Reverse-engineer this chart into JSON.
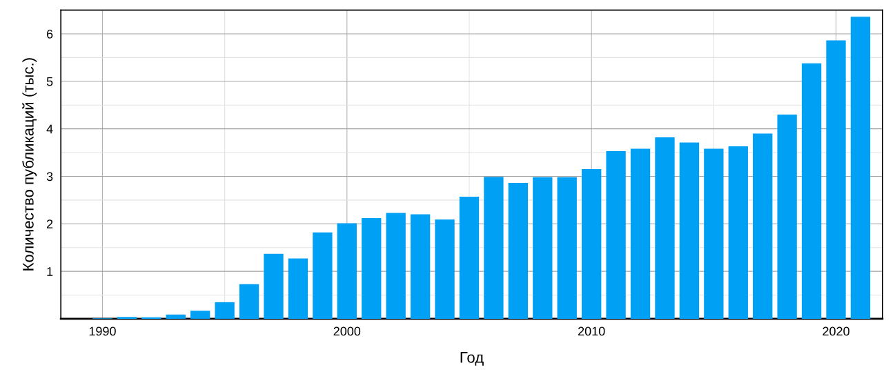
{
  "chart_data": {
    "type": "bar",
    "xlabel": "Год",
    "ylabel": "Количество публикаций (тыс.)",
    "x": [
      1990,
      1991,
      1992,
      1993,
      1994,
      1995,
      1996,
      1997,
      1998,
      1999,
      2000,
      2001,
      2002,
      2003,
      2004,
      2005,
      2006,
      2007,
      2008,
      2009,
      2010,
      2011,
      2012,
      2013,
      2014,
      2015,
      2016,
      2017,
      2018,
      2019,
      2020,
      2021
    ],
    "values": [
      0.01,
      0.04,
      0.03,
      0.09,
      0.17,
      0.35,
      0.73,
      1.37,
      1.27,
      1.82,
      2.01,
      2.12,
      2.23,
      2.2,
      2.09,
      2.57,
      2.99,
      2.86,
      2.98,
      2.98,
      3.15,
      3.53,
      3.58,
      3.82,
      3.71,
      3.58,
      3.63,
      3.9,
      4.3,
      5.38,
      5.86,
      6.36
    ],
    "color": "#00a0f5",
    "xlim": [
      1988.3,
      2021.9
    ],
    "ylim": [
      0,
      6.5
    ],
    "xticks": [
      1990,
      {
        "value": 1995,
        "label": null
      },
      2000,
      {
        "value": 2005,
        "label": null
      },
      2010,
      {
        "value": 2015,
        "label": null
      },
      2020
    ],
    "yticks": [
      {
        "value": 0.5,
        "label": null
      },
      1,
      {
        "value": 1.5,
        "label": null
      },
      2,
      {
        "value": 2.5,
        "label": null
      },
      3,
      {
        "value": 3.5,
        "label": null
      },
      4,
      {
        "value": 4.5,
        "label": null
      },
      5,
      {
        "value": 5.5,
        "label": null
      },
      6
    ],
    "grid": true
  }
}
